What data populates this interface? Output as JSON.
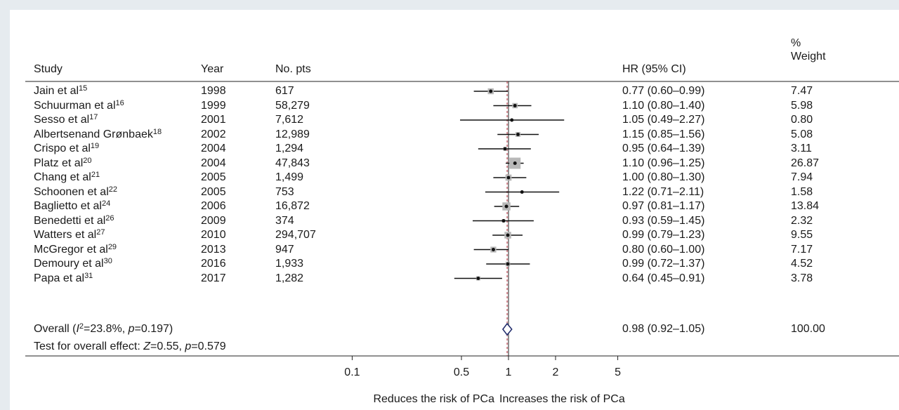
{
  "headers": {
    "study": "Study",
    "year": "Year",
    "pts": "No. pts",
    "hr": "HR (95% CI)",
    "weight_line1": "%",
    "weight_line2": "Weight"
  },
  "footer": {
    "overall_pre": "Overall (",
    "overall_i": "I",
    "overall_isup": "2",
    "overall_mid": "=23.8%, ",
    "overall_p": "p",
    "overall_end": "=0.197)",
    "test_pre": "Test for overall effect: ",
    "test_z": "Z",
    "test_mid": "=0.55, ",
    "test_p": "p",
    "test_end": "=0.579"
  },
  "xaxis_left_label": "Reduces the risk of PCa",
  "xaxis_right_label": "Increases the risk of PCa",
  "chart_data": {
    "type": "forest",
    "xscale": "log",
    "xticks": [
      0.1,
      0.5,
      1,
      2,
      5
    ],
    "xtick_labels": [
      "0.1",
      "0.5",
      "1",
      "2",
      "5"
    ],
    "null_line": 1,
    "studies": [
      {
        "name": "Jain et al",
        "ref": "15",
        "year": "1998",
        "pts": "617",
        "hr": 0.77,
        "lo": 0.6,
        "hi": 0.99,
        "ci_text": "0.77 (0.60–0.99)",
        "weight": "7.47"
      },
      {
        "name": "Schuurman et al",
        "ref": "16",
        "year": "1999",
        "pts": "58,279",
        "hr": 1.1,
        "lo": 0.8,
        "hi": 1.4,
        "ci_text": "1.10 (0.80–1.40)",
        "weight": "5.98"
      },
      {
        "name": "Sesso et al",
        "ref": "17",
        "year": "2001",
        "pts": "7,612",
        "hr": 1.05,
        "lo": 0.49,
        "hi": 2.27,
        "ci_text": "1.05 (0.49–2.27)",
        "weight": "0.80"
      },
      {
        "name": "Albertsenand Grønbaek",
        "ref": "18",
        "year": "2002",
        "pts": "12,989",
        "hr": 1.15,
        "lo": 0.85,
        "hi": 1.56,
        "ci_text": "1.15 (0.85–1.56)",
        "weight": "5.08"
      },
      {
        "name": "Crispo et al",
        "ref": "19",
        "year": "2004",
        "pts": "1,294",
        "hr": 0.95,
        "lo": 0.64,
        "hi": 1.39,
        "ci_text": "0.95 (0.64–1.39)",
        "weight": "3.11"
      },
      {
        "name": "Platz et al",
        "ref": "20",
        "year": "2004",
        "pts": "47,843",
        "hr": 1.1,
        "lo": 0.96,
        "hi": 1.25,
        "ci_text": "1.10 (0.96–1.25)",
        "weight": "26.87"
      },
      {
        "name": "Chang et al",
        "ref": "21",
        "year": "2005",
        "pts": "1,499",
        "hr": 1.0,
        "lo": 0.8,
        "hi": 1.3,
        "ci_text": "1.00 (0.80–1.30)",
        "weight": "7.94"
      },
      {
        "name": "Schoonen et al",
        "ref": "22",
        "year": "2005",
        "pts": "753",
        "hr": 1.22,
        "lo": 0.71,
        "hi": 2.11,
        "ci_text": "1.22 (0.71–2.11)",
        "weight": "1.58"
      },
      {
        "name": "Baglietto et al",
        "ref": "24",
        "year": "2006",
        "pts": "16,872",
        "hr": 0.97,
        "lo": 0.81,
        "hi": 1.17,
        "ci_text": "0.97 (0.81–1.17)",
        "weight": "13.84"
      },
      {
        "name": "Benedetti et al",
        "ref": "26",
        "year": "2009",
        "pts": "374",
        "hr": 0.93,
        "lo": 0.59,
        "hi": 1.45,
        "ci_text": "0.93 (0.59–1.45)",
        "weight": "2.32"
      },
      {
        "name": "Watters et al",
        "ref": "27",
        "year": "2010",
        "pts": "294,707",
        "hr": 0.99,
        "lo": 0.79,
        "hi": 1.23,
        "ci_text": "0.99 (0.79–1.23)",
        "weight": "9.55"
      },
      {
        "name": "McGregor et al",
        "ref": "29",
        "year": "2013",
        "pts": "947",
        "hr": 0.8,
        "lo": 0.6,
        "hi": 1.0,
        "ci_text": "0.80 (0.60–1.00)",
        "weight": "7.17"
      },
      {
        "name": "Demoury et al",
        "ref": "30",
        "year": "2016",
        "pts": "1,933",
        "hr": 0.99,
        "lo": 0.72,
        "hi": 1.37,
        "ci_text": "0.99 (0.72–1.37)",
        "weight": "4.52"
      },
      {
        "name": "Papa et al",
        "ref": "31",
        "year": "2017",
        "pts": "1,282",
        "hr": 0.64,
        "lo": 0.45,
        "hi": 0.91,
        "ci_text": "0.64 (0.45–0.91)",
        "weight": "3.78"
      }
    ],
    "overall": {
      "hr": 0.98,
      "lo": 0.92,
      "hi": 1.05,
      "ci_text": "0.98 (0.92–1.05)",
      "weight": "100.00"
    }
  }
}
